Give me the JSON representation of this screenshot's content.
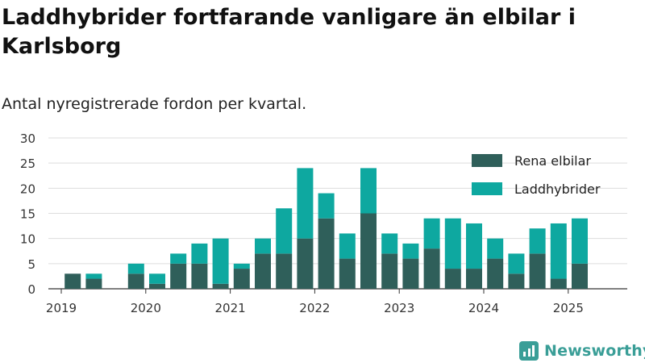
{
  "title": "Laddhybrider fortfarande vanligare än elbilar i Karlsborg",
  "subtitle": "Antal nyregistrerade fordon per kvartal.",
  "brand": "Newsworthy",
  "colors": {
    "elbil": "#2f5f5a",
    "laddhybrid": "#0ea8a0",
    "grid": "#dddddd",
    "axis": "#333333"
  },
  "chart_data": {
    "type": "bar",
    "stacked": true,
    "ylim": [
      0,
      30
    ],
    "yticks": [
      0,
      5,
      10,
      15,
      20,
      25,
      30
    ],
    "year_labels": [
      "2019",
      "2020",
      "2021",
      "2022",
      "2023",
      "2024",
      "2025"
    ],
    "categories": [
      "2019 Q2",
      "2019 Q3",
      "2019 Q4",
      "2020 Q1",
      "2020 Q2",
      "2020 Q3",
      "2020 Q4",
      "2021 Q1",
      "2021 Q2",
      "2021 Q3",
      "2021 Q4",
      "2022 Q1",
      "2022 Q2",
      "2022 Q3",
      "2022 Q4",
      "2023 Q1",
      "2023 Q2",
      "2023 Q3",
      "2023 Q4",
      "2024 Q1",
      "2024 Q2",
      "2024 Q3",
      "2024 Q4",
      "2025 Q1",
      "2025 Q2"
    ],
    "series": [
      {
        "name": "Rena elbilar",
        "values": [
          3,
          2,
          0,
          3,
          1,
          5,
          5,
          1,
          4,
          7,
          7,
          10,
          14,
          6,
          15,
          7,
          6,
          8,
          4,
          4,
          6,
          3,
          7,
          2,
          5
        ]
      },
      {
        "name": "Laddhybrider",
        "values": [
          0,
          1,
          0,
          2,
          2,
          2,
          4,
          9,
          1,
          3,
          9,
          14,
          5,
          5,
          9,
          4,
          3,
          6,
          10,
          9,
          4,
          4,
          5,
          11,
          9
        ]
      }
    ],
    "legend_position": "top-right",
    "grid": true
  }
}
